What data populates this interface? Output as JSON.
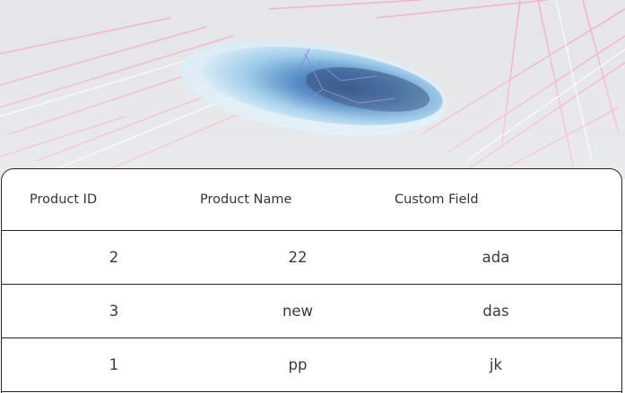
{
  "hero": {
    "image": "blue-cell-microscopy-illustration"
  },
  "table": {
    "headers": [
      "Product ID",
      "Product Name",
      "Custom Field"
    ],
    "rows": [
      {
        "product_id": "2",
        "product_name": "22",
        "custom_field": "ada"
      },
      {
        "product_id": "3",
        "product_name": "new",
        "custom_field": "das"
      },
      {
        "product_id": "1",
        "product_name": "pp",
        "custom_field": "jk"
      }
    ]
  },
  "colors": {
    "border": "#222222",
    "text": "#3a3a3a",
    "hero_bg": "#e0e0e2",
    "cell_blue": "#5fa8d8",
    "fiber_pink": "#f2a8c4"
  }
}
